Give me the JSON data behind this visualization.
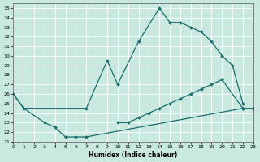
{
  "xlabel": "Humidex (Indice chaleur)",
  "xlim": [
    0,
    23
  ],
  "ylim": [
    21,
    35.5
  ],
  "yticks": [
    21,
    22,
    23,
    24,
    25,
    26,
    27,
    28,
    29,
    30,
    31,
    32,
    33,
    34,
    35
  ],
  "xticks": [
    0,
    1,
    2,
    3,
    4,
    5,
    6,
    7,
    8,
    9,
    10,
    11,
    12,
    13,
    14,
    15,
    16,
    17,
    18,
    19,
    20,
    21,
    22,
    23
  ],
  "background_color": "#c8e8e0",
  "grid_color": "#b0d8d0",
  "line_color": "#1a6e6e",
  "curves": [
    [
      [
        0,
        26
      ],
      [
        1,
        24.5
      ],
      [
        3,
        23
      ],
      [
        4,
        22.5
      ],
      [
        5,
        21.5
      ],
      [
        6,
        21.5
      ],
      [
        7,
        21.5
      ],
      [
        22,
        24.5
      ],
      [
        23,
        24.5
      ]
    ],
    [
      [
        0,
        26
      ],
      [
        1,
        24.5
      ],
      [
        7,
        24.5
      ],
      [
        9,
        29.5
      ],
      [
        10,
        27
      ],
      [
        12,
        31.5
      ],
      [
        14,
        35
      ],
      [
        15,
        33.5
      ],
      [
        16,
        33.5
      ],
      [
        17,
        33
      ],
      [
        18,
        32.5
      ],
      [
        19,
        31.5
      ],
      [
        20,
        30
      ],
      [
        21,
        29
      ],
      [
        22,
        25
      ]
    ],
    [
      [
        10,
        23
      ],
      [
        11,
        23
      ],
      [
        12,
        23.5
      ],
      [
        13,
        24
      ],
      [
        14,
        24.5
      ],
      [
        15,
        25
      ],
      [
        16,
        25.5
      ],
      [
        17,
        26
      ],
      [
        18,
        26.5
      ],
      [
        19,
        27
      ],
      [
        20,
        27.5
      ],
      [
        22,
        24.5
      ],
      [
        23,
        24.5
      ]
    ]
  ]
}
